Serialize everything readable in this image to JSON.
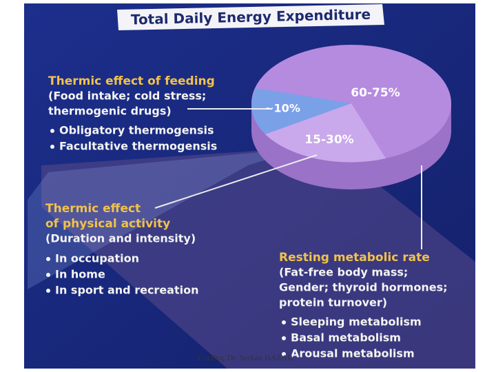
{
  "title": "Total Daily Energy Expenditure",
  "pie": {
    "labels": [
      "60-75%",
      "~10%",
      "15-30%"
    ]
  },
  "sections": [
    {
      "heading": [
        "Thermic effect of feeding"
      ],
      "details": [
        "(Food intake; cold stress;",
        "thermogenic drugs)"
      ],
      "bullets": [
        "Obligatory thermogensis",
        "Facultative thermogensis"
      ]
    },
    {
      "heading": [
        "Thermic effect",
        "of physical activity"
      ],
      "details": [
        "(Duration and intensity)"
      ],
      "bullets": [
        "In occupation",
        "In home",
        "In sport and recreation"
      ]
    },
    {
      "heading": [
        "Resting metabolic rate"
      ],
      "details": [
        "(Fat-free body mass;",
        "Gender; thyroid hormones;",
        "protein turnover)"
      ],
      "bullets": [
        "Sleeping metabolism",
        "Basal metabolism",
        "Arousal metabolism"
      ]
    }
  ],
  "footer": "Yrd.Doç.Dr. Serkan HAZAR"
}
